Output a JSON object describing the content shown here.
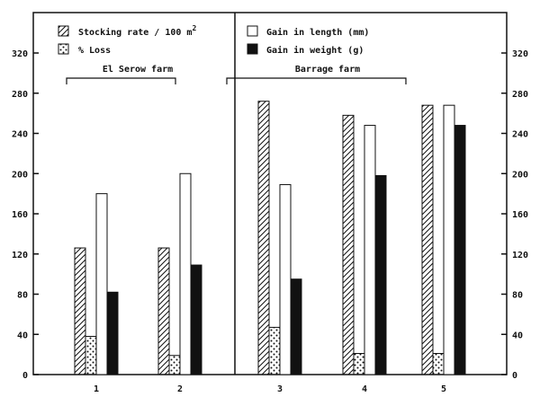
{
  "chart_data": {
    "type": "bar",
    "title": "",
    "xlabel": "",
    "ylabel": "",
    "ylim": [
      0,
      320
    ],
    "yticks": [
      0,
      40,
      80,
      120,
      160,
      200,
      240,
      280,
      320
    ],
    "categories": [
      "1",
      "2",
      "3",
      "4",
      "5"
    ],
    "groups": [
      {
        "label": "El Serow farm",
        "categories": [
          "1",
          "2"
        ]
      },
      {
        "label": "Barrage farm",
        "categories": [
          "3",
          "4",
          "5"
        ]
      }
    ],
    "series": [
      {
        "name": "Stocking rate / 100 m",
        "superscript": "2",
        "pattern": "hatched",
        "values": [
          126,
          126,
          272,
          258,
          268
        ]
      },
      {
        "name": "% Loss",
        "pattern": "dotted",
        "values": [
          38,
          19,
          47,
          21,
          21
        ]
      },
      {
        "name": "Gain in length (mm)",
        "pattern": "open",
        "values": [
          180,
          200,
          189,
          248,
          268
        ]
      },
      {
        "name": "Gain in weight (g)",
        "pattern": "solid",
        "values": [
          82,
          109,
          95,
          198,
          248
        ]
      }
    ],
    "legend_position": "top",
    "grid": false,
    "colors": {
      "ink": "#111111",
      "background": "#ffffff"
    }
  }
}
